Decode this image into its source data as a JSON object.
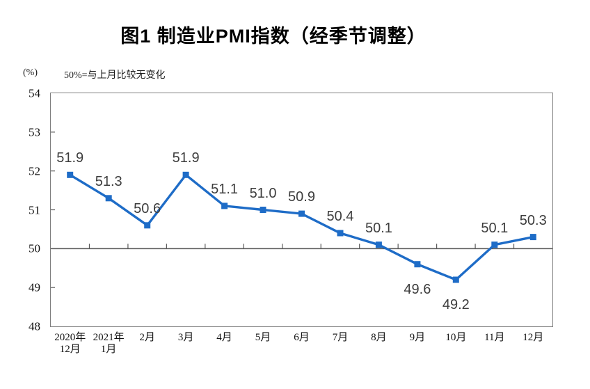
{
  "header": {
    "title": "图1 制造业PMI指数（经季节调整）"
  },
  "chart_data": {
    "type": "line",
    "title": "图1 制造业PMI指数（经季节调整）",
    "unit_label": "(%)",
    "note": "50%=与上月比较无变化",
    "categories": [
      "2020年\n12月",
      "2021年\n1月",
      "2月",
      "3月",
      "4月",
      "5月",
      "6月",
      "7月",
      "8月",
      "9月",
      "10月",
      "11月",
      "12月"
    ],
    "series": [
      {
        "name": "制造业PMI指数",
        "values": [
          51.9,
          51.3,
          50.6,
          51.9,
          51.1,
          51.0,
          50.9,
          50.4,
          50.1,
          49.6,
          49.2,
          50.1,
          50.3
        ]
      }
    ],
    "data_labels": [
      "51.9",
      "51.3",
      "50.6",
      "51.9",
      "51.1",
      "51.0",
      "50.9",
      "50.4",
      "50.1",
      "49.6",
      "49.2",
      "50.1",
      "50.3"
    ],
    "label_positions": [
      "above",
      "above",
      "above",
      "above",
      "above",
      "above",
      "above",
      "above",
      "above",
      "below",
      "below",
      "above",
      "above"
    ],
    "y_ticks": [
      54,
      53,
      52,
      51,
      50,
      49,
      48
    ],
    "ylim": [
      48,
      54
    ],
    "reference_line": 50,
    "grid": false,
    "legend": "none",
    "marker": "square",
    "colors": {
      "line": "#1e6cc7",
      "marker": "#1e6cc7",
      "axis": "#595959",
      "frame": "#7f7f7f",
      "data_label": "#3d3d3d"
    }
  }
}
